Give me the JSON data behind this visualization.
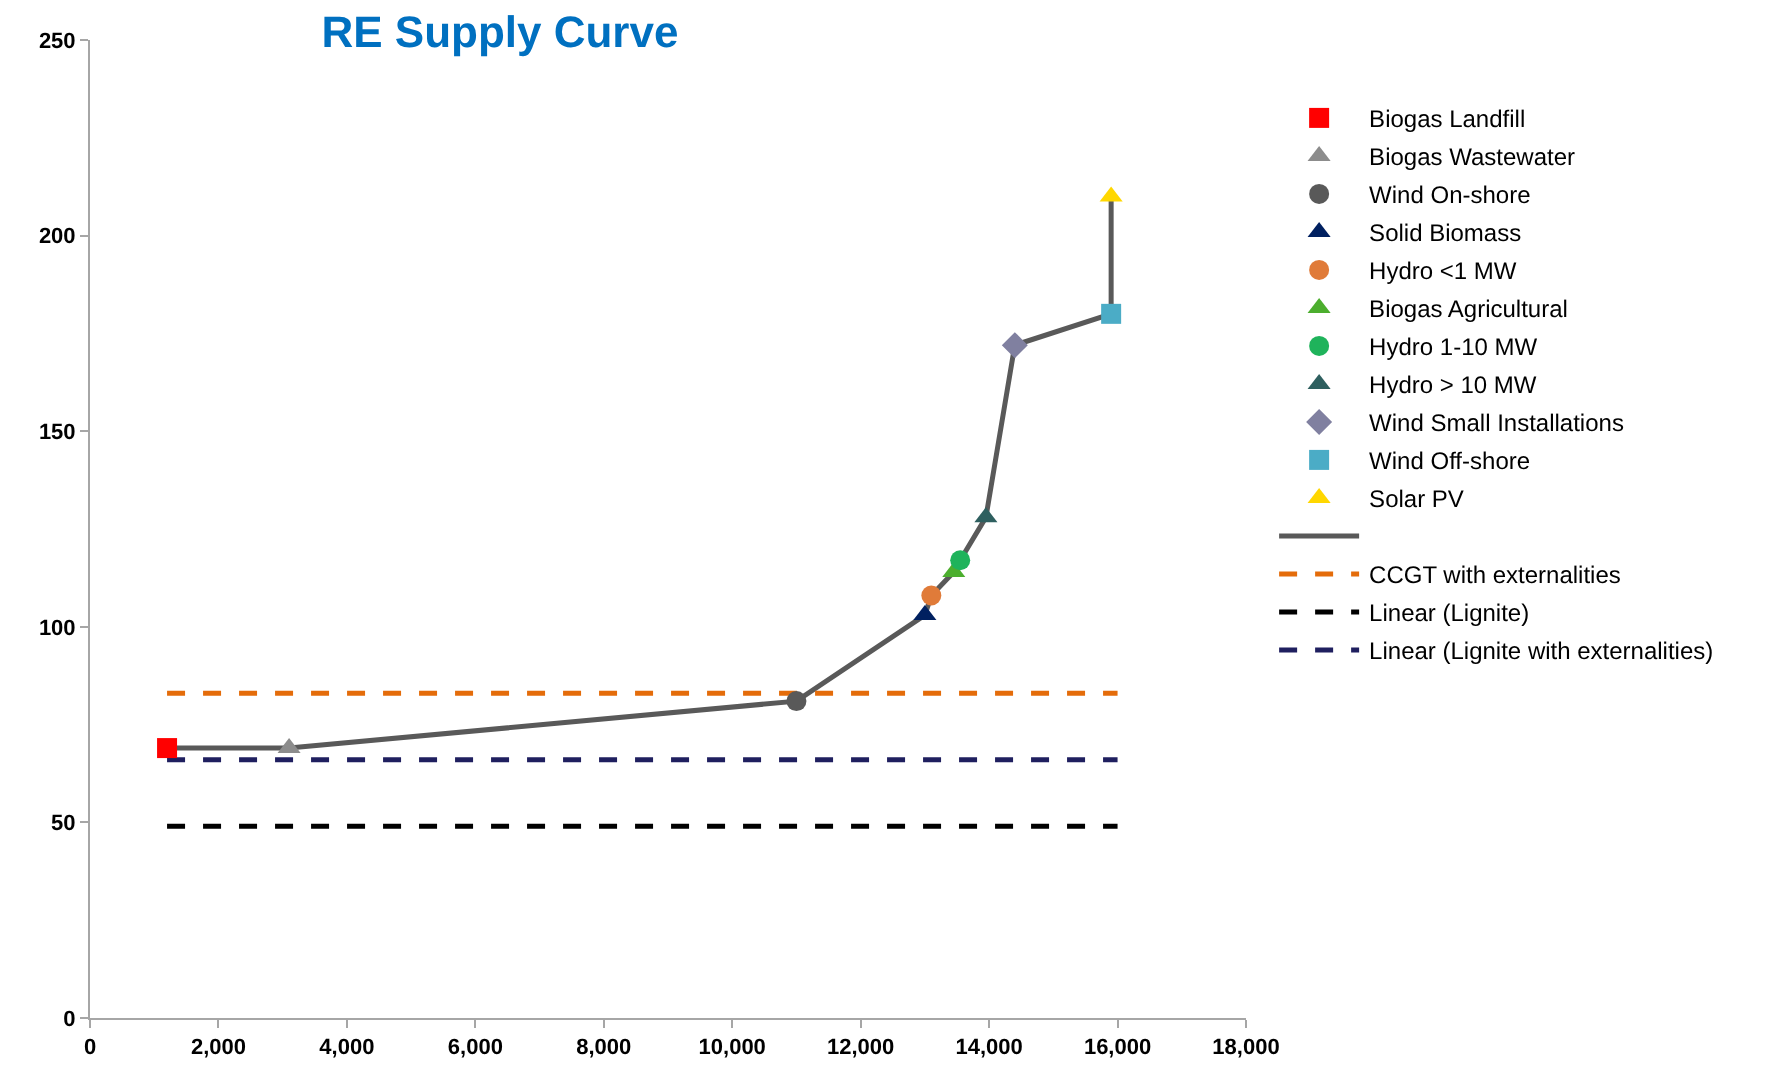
{
  "chart_data": {
    "type": "scatter",
    "title": "RE Supply Curve",
    "xlim": [
      0,
      18000
    ],
    "ylim": [
      0,
      250
    ],
    "xticks": [
      0,
      {
        "value": 2000,
        "label": "2,000"
      },
      {
        "value": 4000,
        "label": "4,000"
      },
      {
        "value": 6000,
        "label": "6,000"
      },
      {
        "value": 8000,
        "label": "8,000"
      },
      {
        "value": 10000,
        "label": "10,000"
      },
      {
        "value": 12000,
        "label": "12,000"
      },
      {
        "value": 14000,
        "label": "14,000"
      },
      {
        "value": 16000,
        "label": "16,000"
      },
      {
        "value": 18000,
        "label": "18,000"
      }
    ],
    "yticks": [
      0,
      50,
      100,
      150,
      200,
      250
    ],
    "grid": false,
    "legend": "right",
    "series": [
      {
        "name": "Biogas Landfill",
        "marker": "square",
        "color": "#ff0000",
        "x": [
          1200
        ],
        "values": [
          69
        ]
      },
      {
        "name": "Biogas Wastewater",
        "marker": "triangle",
        "color": "#8c8c8c",
        "x": [
          3100
        ],
        "values": [
          69
        ]
      },
      {
        "name": "Wind On-shore",
        "marker": "circle",
        "color": "#595959",
        "x": [
          11000
        ],
        "values": [
          81
        ]
      },
      {
        "name": "Solid Biomass",
        "marker": "triangle",
        "color": "#002060",
        "x": [
          13000
        ],
        "values": [
          103
        ]
      },
      {
        "name": "Hydro <1 MW",
        "marker": "circle",
        "color": "#e07b39",
        "x": [
          13100
        ],
        "values": [
          108
        ]
      },
      {
        "name": "Biogas Agricultural",
        "marker": "triangle",
        "color": "#4cae2e",
        "x": [
          13450
        ],
        "values": [
          114
        ]
      },
      {
        "name": "Hydro 1-10 MW",
        "marker": "circle",
        "color": "#1fb35b",
        "x": [
          13550
        ],
        "values": [
          117
        ]
      },
      {
        "name": "Hydro > 10 MW",
        "marker": "triangle",
        "color": "#2e5f5f",
        "x": [
          13950
        ],
        "values": [
          128
        ]
      },
      {
        "name": "Wind Small Installations",
        "marker": "diamond",
        "color": "#8080a0",
        "x": [
          14400
        ],
        "values": [
          172
        ]
      },
      {
        "name": "Wind Off-shore",
        "marker": "square",
        "color": "#4bacc6",
        "x": [
          15900
        ],
        "values": [
          180
        ]
      },
      {
        "name": "Solar PV",
        "marker": "triangle",
        "color": "#ffd700",
        "x": [
          15900
        ],
        "values": [
          210
        ]
      },
      {
        "type": "line",
        "line_style": "solid",
        "color": "#595959",
        "x": [
          1200,
          3100,
          11000,
          13000,
          13100,
          13450,
          13550,
          13950,
          14400,
          15900,
          15900
        ],
        "values": [
          69,
          69,
          81,
          103,
          108,
          114,
          117,
          128,
          172,
          180,
          210
        ]
      },
      {
        "name": "CCGT with externalities",
        "type": "line",
        "line_style": "dashed",
        "color": "#e46c0a",
        "x": [
          1200,
          16000
        ],
        "values": [
          83,
          83
        ]
      },
      {
        "name": "Linear (Lignite)",
        "type": "line",
        "line_style": "dashed",
        "color": "#000000",
        "x": [
          1200,
          16000
        ],
        "values": [
          49,
          49
        ]
      },
      {
        "name": "Linear (Lignite with externalities)",
        "type": "line",
        "line_style": "dashed",
        "color": "#1f1f5f",
        "x": [
          1200,
          16000
        ],
        "values": [
          66,
          66
        ]
      }
    ]
  }
}
